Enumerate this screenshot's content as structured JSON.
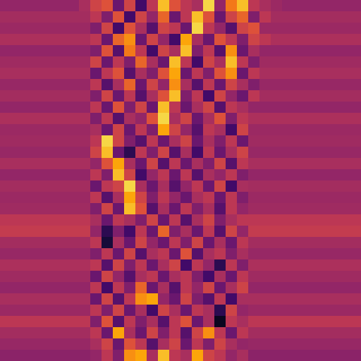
{
  "chart_data": {
    "type": "heatmap",
    "color": "inferno",
    "tick_labels": false,
    "color_range": [
      0,
      1
    ],
    "cells": [
      [
        0.4,
        0.4,
        0.4,
        0.4,
        0.4,
        0.4,
        0.4,
        0.45,
        0.55,
        0.6,
        0.3,
        0.55,
        0.2,
        0.5,
        0.85,
        0.6,
        0.5,
        0.45,
        0.9,
        0.4,
        0.7,
        0.85,
        0.5,
        0.45,
        0.42,
        0.4,
        0.4,
        0.4,
        0.4,
        0.4,
        0.4,
        0.4
      ],
      [
        0.44,
        0.44,
        0.44,
        0.44,
        0.44,
        0.44,
        0.44,
        0.44,
        0.5,
        0.35,
        0.6,
        0.2,
        0.55,
        0.4,
        0.65,
        0.3,
        0.5,
        0.85,
        0.6,
        0.3,
        0.55,
        0.65,
        0.35,
        0.5,
        0.44,
        0.44,
        0.44,
        0.44,
        0.44,
        0.44,
        0.44,
        0.44
      ],
      [
        0.42,
        0.42,
        0.42,
        0.42,
        0.42,
        0.42,
        0.42,
        0.42,
        0.35,
        0.55,
        0.2,
        0.6,
        0.45,
        0.25,
        0.55,
        0.5,
        0.3,
        0.9,
        0.5,
        0.4,
        0.25,
        0.55,
        0.6,
        0.42,
        0.42,
        0.42,
        0.42,
        0.42,
        0.42,
        0.42,
        0.42,
        0.42
      ],
      [
        0.46,
        0.46,
        0.46,
        0.46,
        0.46,
        0.46,
        0.46,
        0.46,
        0.5,
        0.3,
        0.65,
        0.75,
        0.3,
        0.55,
        0.4,
        0.2,
        0.8,
        0.45,
        0.3,
        0.6,
        0.5,
        0.35,
        0.55,
        0.5,
        0.46,
        0.46,
        0.46,
        0.46,
        0.46,
        0.46,
        0.46,
        0.46
      ],
      [
        0.4,
        0.4,
        0.4,
        0.4,
        0.4,
        0.4,
        0.4,
        0.4,
        0.35,
        0.6,
        0.25,
        0.7,
        0.5,
        0.2,
        0.55,
        0.45,
        0.85,
        0.35,
        0.5,
        0.25,
        0.75,
        0.3,
        0.45,
        0.4,
        0.4,
        0.4,
        0.4,
        0.4,
        0.4,
        0.4,
        0.4,
        0.4
      ],
      [
        0.43,
        0.43,
        0.43,
        0.43,
        0.43,
        0.43,
        0.43,
        0.43,
        0.55,
        0.3,
        0.5,
        0.35,
        0.65,
        0.45,
        0.3,
        0.85,
        0.5,
        0.2,
        0.55,
        0.45,
        0.85,
        0.5,
        0.35,
        0.43,
        0.43,
        0.43,
        0.43,
        0.43,
        0.43,
        0.43,
        0.43,
        0.43
      ],
      [
        0.45,
        0.45,
        0.45,
        0.45,
        0.45,
        0.45,
        0.45,
        0.45,
        0.3,
        0.5,
        0.6,
        0.25,
        0.45,
        0.35,
        0.6,
        0.8,
        0.3,
        0.5,
        0.35,
        0.6,
        0.75,
        0.3,
        0.5,
        0.45,
        0.45,
        0.45,
        0.45,
        0.45,
        0.45,
        0.45,
        0.45,
        0.45
      ],
      [
        0.41,
        0.41,
        0.41,
        0.41,
        0.41,
        0.41,
        0.41,
        0.41,
        0.5,
        0.25,
        0.45,
        0.65,
        0.3,
        0.55,
        0.4,
        0.75,
        0.45,
        0.25,
        0.5,
        0.3,
        0.55,
        0.45,
        0.35,
        0.41,
        0.41,
        0.41,
        0.41,
        0.41,
        0.41,
        0.41,
        0.41,
        0.41
      ],
      [
        0.44,
        0.44,
        0.44,
        0.44,
        0.44,
        0.44,
        0.44,
        0.44,
        0.35,
        0.55,
        0.3,
        0.5,
        0.25,
        0.45,
        0.6,
        0.85,
        0.35,
        0.5,
        0.2,
        0.55,
        0.4,
        0.3,
        0.5,
        0.44,
        0.44,
        0.44,
        0.44,
        0.44,
        0.44,
        0.44,
        0.44,
        0.44
      ],
      [
        0.4,
        0.4,
        0.4,
        0.4,
        0.4,
        0.4,
        0.4,
        0.4,
        0.5,
        0.3,
        0.6,
        0.35,
        0.55,
        0.3,
        0.85,
        0.5,
        0.3,
        0.45,
        0.55,
        0.25,
        0.5,
        0.45,
        0.4,
        0.4,
        0.4,
        0.4,
        0.4,
        0.4,
        0.4,
        0.4,
        0.4,
        0.4
      ],
      [
        0.46,
        0.46,
        0.46,
        0.46,
        0.46,
        0.46,
        0.46,
        0.46,
        0.35,
        0.5,
        0.25,
        0.45,
        0.4,
        0.6,
        0.9,
        0.45,
        0.55,
        0.3,
        0.45,
        0.6,
        0.35,
        0.5,
        0.46,
        0.46,
        0.46,
        0.46,
        0.46,
        0.46,
        0.46,
        0.46,
        0.46,
        0.46
      ],
      [
        0.42,
        0.42,
        0.42,
        0.42,
        0.42,
        0.42,
        0.42,
        0.42,
        0.45,
        0.3,
        0.55,
        0.3,
        0.5,
        0.35,
        0.8,
        0.55,
        0.4,
        0.25,
        0.5,
        0.45,
        0.2,
        0.55,
        0.42,
        0.42,
        0.42,
        0.42,
        0.42,
        0.42,
        0.42,
        0.42,
        0.42,
        0.42
      ],
      [
        0.43,
        0.43,
        0.43,
        0.43,
        0.43,
        0.43,
        0.43,
        0.43,
        0.5,
        0.9,
        0.55,
        0.35,
        0.25,
        0.5,
        0.3,
        0.45,
        0.55,
        0.3,
        0.45,
        0.35,
        0.5,
        0.3,
        0.43,
        0.43,
        0.43,
        0.43,
        0.43,
        0.43,
        0.43,
        0.43,
        0.43,
        0.43
      ],
      [
        0.41,
        0.41,
        0.41,
        0.41,
        0.41,
        0.41,
        0.41,
        0.41,
        0.55,
        0.85,
        0.3,
        0.15,
        0.5,
        0.35,
        0.55,
        0.25,
        0.45,
        0.2,
        0.5,
        0.3,
        0.45,
        0.55,
        0.41,
        0.41,
        0.41,
        0.41,
        0.41,
        0.41,
        0.41,
        0.41,
        0.41,
        0.41
      ],
      [
        0.45,
        0.45,
        0.45,
        0.45,
        0.45,
        0.45,
        0.45,
        0.45,
        0.4,
        0.6,
        0.8,
        0.45,
        0.3,
        0.55,
        0.25,
        0.5,
        0.3,
        0.45,
        0.35,
        0.55,
        0.25,
        0.5,
        0.45,
        0.45,
        0.45,
        0.45,
        0.45,
        0.45,
        0.45,
        0.45,
        0.45,
        0.45
      ],
      [
        0.4,
        0.4,
        0.4,
        0.4,
        0.4,
        0.4,
        0.4,
        0.4,
        0.5,
        0.35,
        0.85,
        0.55,
        0.2,
        0.4,
        0.5,
        0.3,
        0.5,
        0.25,
        0.45,
        0.4,
        0.5,
        0.35,
        0.4,
        0.4,
        0.4,
        0.4,
        0.4,
        0.4,
        0.4,
        0.4,
        0.4,
        0.4
      ],
      [
        0.44,
        0.44,
        0.44,
        0.44,
        0.44,
        0.44,
        0.44,
        0.44,
        0.3,
        0.5,
        0.55,
        0.9,
        0.45,
        0.3,
        0.45,
        0.25,
        0.4,
        0.5,
        0.3,
        0.55,
        0.2,
        0.45,
        0.44,
        0.44,
        0.44,
        0.44,
        0.44,
        0.44,
        0.44,
        0.44,
        0.44,
        0.44
      ],
      [
        0.42,
        0.42,
        0.42,
        0.42,
        0.42,
        0.42,
        0.42,
        0.42,
        0.5,
        0.25,
        0.45,
        0.8,
        0.55,
        0.35,
        0.5,
        0.4,
        0.3,
        0.45,
        0.5,
        0.3,
        0.5,
        0.35,
        0.42,
        0.42,
        0.42,
        0.42,
        0.42,
        0.42,
        0.42,
        0.42,
        0.42,
        0.42
      ],
      [
        0.43,
        0.43,
        0.43,
        0.43,
        0.43,
        0.43,
        0.43,
        0.43,
        0.35,
        0.55,
        0.3,
        0.85,
        0.6,
        0.25,
        0.45,
        0.3,
        0.5,
        0.35,
        0.45,
        0.25,
        0.5,
        0.4,
        0.43,
        0.43,
        0.43,
        0.43,
        0.43,
        0.43,
        0.43,
        0.43,
        0.43,
        0.43
      ],
      [
        0.5,
        0.5,
        0.5,
        0.5,
        0.5,
        0.5,
        0.5,
        0.5,
        0.45,
        0.3,
        0.5,
        0.45,
        0.35,
        0.55,
        0.3,
        0.5,
        0.25,
        0.45,
        0.55,
        0.35,
        0.45,
        0.5,
        0.5,
        0.5,
        0.5,
        0.5,
        0.5,
        0.5,
        0.5,
        0.5,
        0.5,
        0.5
      ],
      [
        0.52,
        0.52,
        0.52,
        0.52,
        0.52,
        0.52,
        0.52,
        0.52,
        0.4,
        0.15,
        0.35,
        0.2,
        0.5,
        0.3,
        0.65,
        0.35,
        0.45,
        0.3,
        0.5,
        0.25,
        0.55,
        0.4,
        0.52,
        0.52,
        0.52,
        0.52,
        0.52,
        0.52,
        0.52,
        0.52,
        0.52,
        0.52
      ],
      [
        0.44,
        0.44,
        0.44,
        0.44,
        0.44,
        0.44,
        0.44,
        0.44,
        0.5,
        0.1,
        0.45,
        0.3,
        0.55,
        0.4,
        0.3,
        0.5,
        0.35,
        0.55,
        0.3,
        0.45,
        0.3,
        0.5,
        0.44,
        0.44,
        0.44,
        0.44,
        0.44,
        0.44,
        0.44,
        0.44,
        0.44,
        0.44
      ],
      [
        0.41,
        0.41,
        0.41,
        0.41,
        0.41,
        0.41,
        0.41,
        0.41,
        0.35,
        0.5,
        0.3,
        0.55,
        0.25,
        0.45,
        0.5,
        0.3,
        0.6,
        0.25,
        0.45,
        0.5,
        0.35,
        0.45,
        0.41,
        0.41,
        0.41,
        0.41,
        0.41,
        0.41,
        0.41,
        0.41,
        0.41,
        0.41
      ],
      [
        0.46,
        0.46,
        0.46,
        0.46,
        0.46,
        0.46,
        0.46,
        0.46,
        0.5,
        0.25,
        0.55,
        0.35,
        0.5,
        0.3,
        0.45,
        0.55,
        0.2,
        0.5,
        0.4,
        0.15,
        0.5,
        0.35,
        0.46,
        0.46,
        0.46,
        0.46,
        0.46,
        0.46,
        0.46,
        0.46,
        0.46,
        0.46
      ],
      [
        0.43,
        0.43,
        0.43,
        0.43,
        0.43,
        0.43,
        0.43,
        0.43,
        0.3,
        0.55,
        0.4,
        0.25,
        0.45,
        0.5,
        0.3,
        0.45,
        0.5,
        0.35,
        0.2,
        0.45,
        0.3,
        0.5,
        0.43,
        0.43,
        0.43,
        0.43,
        0.43,
        0.43,
        0.43,
        0.43,
        0.43,
        0.43
      ],
      [
        0.4,
        0.4,
        0.4,
        0.4,
        0.4,
        0.4,
        0.4,
        0.4,
        0.5,
        0.2,
        0.5,
        0.35,
        0.65,
        0.3,
        0.45,
        0.25,
        0.5,
        0.4,
        0.55,
        0.3,
        0.45,
        0.55,
        0.4,
        0.4,
        0.4,
        0.4,
        0.4,
        0.4,
        0.4,
        0.4,
        0.4,
        0.4
      ],
      [
        0.45,
        0.45,
        0.45,
        0.45,
        0.45,
        0.45,
        0.45,
        0.45,
        0.3,
        0.55,
        0.25,
        0.5,
        0.75,
        0.8,
        0.4,
        0.3,
        0.55,
        0.35,
        0.25,
        0.5,
        0.2,
        0.45,
        0.45,
        0.45,
        0.45,
        0.45,
        0.45,
        0.45,
        0.45,
        0.45,
        0.45,
        0.45
      ],
      [
        0.42,
        0.42,
        0.42,
        0.42,
        0.42,
        0.42,
        0.42,
        0.42,
        0.5,
        0.35,
        0.55,
        0.3,
        0.45,
        0.2,
        0.55,
        0.45,
        0.3,
        0.5,
        0.45,
        0.15,
        0.55,
        0.4,
        0.42,
        0.42,
        0.42,
        0.42,
        0.42,
        0.42,
        0.42,
        0.42,
        0.42,
        0.42
      ],
      [
        0.5,
        0.5,
        0.5,
        0.5,
        0.5,
        0.5,
        0.5,
        0.5,
        0.35,
        0.6,
        0.25,
        0.5,
        0.35,
        0.45,
        0.25,
        0.5,
        0.6,
        0.3,
        0.45,
        0.05,
        0.5,
        0.45,
        0.5,
        0.5,
        0.5,
        0.5,
        0.5,
        0.5,
        0.5,
        0.5,
        0.5,
        0.5
      ],
      [
        0.44,
        0.44,
        0.44,
        0.44,
        0.44,
        0.44,
        0.44,
        0.44,
        0.5,
        0.3,
        0.8,
        0.45,
        0.3,
        0.55,
        0.35,
        0.5,
        0.25,
        0.55,
        0.75,
        0.5,
        0.3,
        0.5,
        0.44,
        0.44,
        0.44,
        0.44,
        0.44,
        0.44,
        0.44,
        0.44,
        0.44,
        0.44
      ],
      [
        0.41,
        0.41,
        0.41,
        0.41,
        0.41,
        0.41,
        0.41,
        0.41,
        0.45,
        0.55,
        0.3,
        0.6,
        0.5,
        0.25,
        0.45,
        0.55,
        0.3,
        0.5,
        0.35,
        0.55,
        0.45,
        0.4,
        0.41,
        0.41,
        0.41,
        0.41,
        0.41,
        0.41,
        0.41,
        0.41,
        0.41,
        0.41
      ],
      [
        0.38,
        0.38,
        0.38,
        0.38,
        0.38,
        0.38,
        0.38,
        0.38,
        0.4,
        0.5,
        0.35,
        0.75,
        0.8,
        0.45,
        0.85,
        0.5,
        0.45,
        0.8,
        0.55,
        0.5,
        0.4,
        0.45,
        0.38,
        0.38,
        0.38,
        0.38,
        0.38,
        0.38,
        0.38,
        0.38,
        0.38,
        0.38
      ]
    ]
  }
}
